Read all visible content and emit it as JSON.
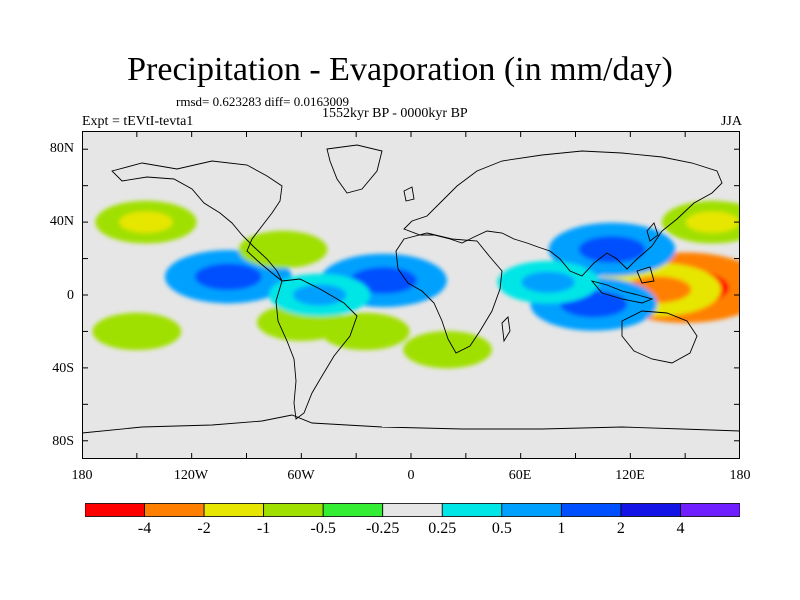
{
  "title": "Precipitation - Evaporation (in mm/day)",
  "stats": "rmsd= 0.623283  diff= 0.0163009",
  "experiment": "Expt = tEVtI-tevta1",
  "period": "1552kyr BP - 0000kyr BP",
  "season": "JJA",
  "lat_ticks": [
    "80N",
    "40N",
    "0",
    "40S",
    "80S"
  ],
  "lon_ticks": [
    "180",
    "120W",
    "60W",
    "0",
    "60E",
    "120E",
    "180"
  ],
  "colorbar": {
    "labels": [
      "-4",
      "-2",
      "-1",
      "-0.5",
      "-0.25",
      "0.25",
      "0.5",
      "1",
      "2",
      "4"
    ],
    "colors": [
      "#ff0000",
      "#ff8000",
      "#e6e600",
      "#a0e000",
      "#33ee33",
      "#e6e6e6",
      "#00e6e6",
      "#00a0ff",
      "#0050ff",
      "#1414e6",
      "#7020ff"
    ]
  },
  "chart_data": {
    "type": "heatmap",
    "title": "Precipitation - Evaporation (in mm/day)",
    "variable": "P-E difference",
    "units": "mm/day",
    "season": "JJA",
    "xlim": [
      -180,
      180
    ],
    "ylim": [
      -90,
      90
    ],
    "x_ticks": [
      "180",
      "120W",
      "60W",
      "0",
      "60E",
      "120E",
      "180"
    ],
    "y_ticks": [
      "80N",
      "40N",
      "0",
      "40S",
      "80S"
    ],
    "contour_levels": [
      -4,
      -2,
      -1,
      -0.5,
      -0.25,
      0.25,
      0.5,
      1,
      2,
      4
    ],
    "features": [
      {
        "lon": 150,
        "lat": 4,
        "value": -4
      },
      {
        "lon": 135,
        "lat": 3,
        "value": -2
      },
      {
        "lon": 110,
        "lat": 25,
        "value": 2
      },
      {
        "lon": 100,
        "lat": -5,
        "value": 2
      },
      {
        "lon": 75,
        "lat": 7,
        "value": 1
      },
      {
        "lon": -15,
        "lat": 8,
        "value": 2
      },
      {
        "lon": -100,
        "lat": 10,
        "value": 2
      },
      {
        "lon": -145,
        "lat": 40,
        "value": -1
      },
      {
        "lon": 165,
        "lat": 40,
        "value": -1
      },
      {
        "lon": -70,
        "lat": 25,
        "value": -0.5
      },
      {
        "lon": -60,
        "lat": -15,
        "value": -0.5
      },
      {
        "lon": -150,
        "lat": -20,
        "value": -0.5
      },
      {
        "lon": 20,
        "lat": -30,
        "value": -0.5
      },
      {
        "lon": -25,
        "lat": -20,
        "value": -0.5
      },
      {
        "lon": -50,
        "lat": 0,
        "value": 1
      }
    ]
  }
}
